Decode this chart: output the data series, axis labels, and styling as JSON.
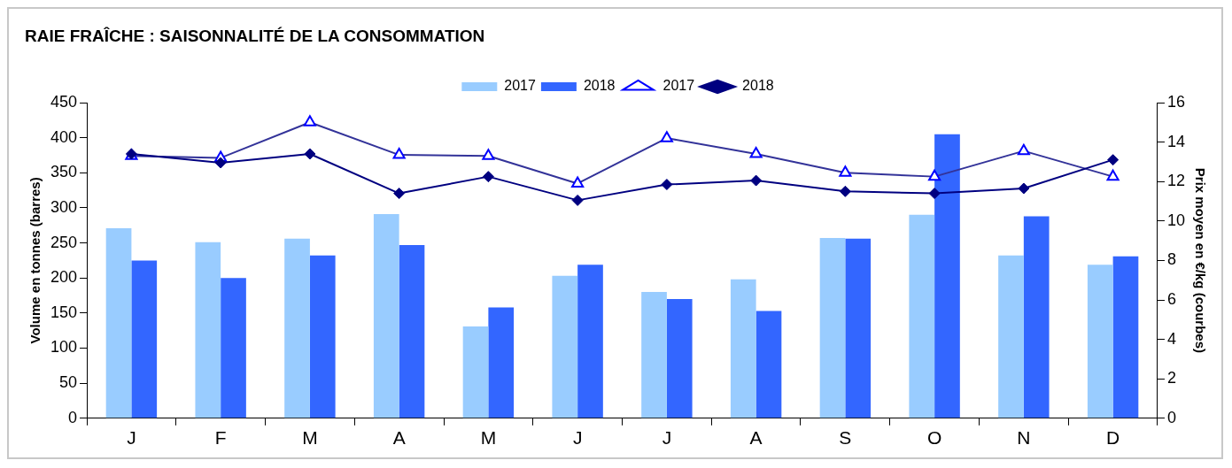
{
  "chart_data": {
    "type": "bar",
    "title": "RAIE FRAÎCHE : SAISONNALITÉ DE LA CONSOMMATION",
    "ylabel": "Volume en tonnes (barres)",
    "y2label": "Prix moyen en €/kg (courbes)",
    "categories": [
      "J",
      "F",
      "M",
      "A",
      "M",
      "J",
      "J",
      "A",
      "S",
      "O",
      "N",
      "D"
    ],
    "series": [
      {
        "name": "2017",
        "color": "#99ccff",
        "values": [
          271,
          251,
          256,
          291,
          131,
          203,
          180,
          198,
          257,
          290,
          232,
          219
        ]
      },
      {
        "name": "2018",
        "color": "#3366ff",
        "values": [
          225,
          200,
          232,
          247,
          158,
          219,
          170,
          153,
          256,
          405,
          288,
          231
        ]
      },
      {
        "name": "2017",
        "type": "line",
        "axis": "y2",
        "color": "#333399",
        "marker": "triangle",
        "values": [
          13.3,
          13.2,
          15.0,
          13.35,
          13.3,
          11.9,
          14.2,
          13.4,
          12.45,
          12.25,
          13.55,
          12.25
        ]
      },
      {
        "name": "2018",
        "type": "line",
        "axis": "y2",
        "color": "#000080",
        "marker": "diamond",
        "values": [
          13.4,
          12.95,
          13.4,
          11.4,
          12.25,
          11.05,
          11.85,
          12.05,
          11.5,
          11.4,
          11.65,
          13.1
        ]
      }
    ],
    "ylim": [
      0,
      450
    ],
    "yticks": [
      0,
      50,
      100,
      150,
      200,
      250,
      300,
      350,
      400,
      450
    ],
    "y2lim": [
      0,
      16
    ],
    "y2ticks": [
      0,
      2,
      4,
      6,
      8,
      10,
      12,
      14,
      16
    ],
    "grid": false,
    "legend": "top"
  }
}
